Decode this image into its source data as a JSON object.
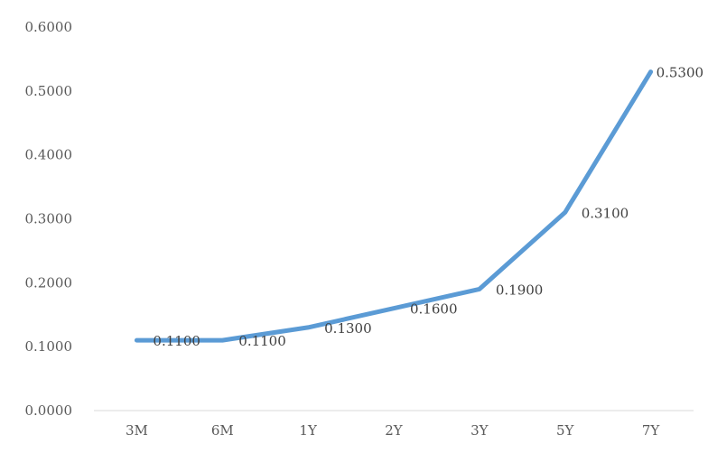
{
  "chart_data": {
    "type": "line",
    "title": "",
    "xlabel": "",
    "ylabel": "",
    "categories": [
      "3M",
      "6M",
      "1Y",
      "2Y",
      "3Y",
      "5Y",
      "7Y"
    ],
    "series": [
      {
        "values": [
          0.11,
          0.11,
          0.13,
          0.16,
          0.19,
          0.31,
          0.53
        ],
        "labels": [
          "0.1100",
          "0.1100",
          "0.1300",
          "0.1600",
          "0.1900",
          "0.3100",
          "0.5300"
        ]
      }
    ],
    "ylim": [
      0,
      0.6
    ],
    "yticks": [
      0,
      0.1,
      0.2,
      0.3,
      0.4,
      0.5,
      0.6
    ],
    "ytick_labels": [
      "0.0000",
      "0.1000",
      "0.2000",
      "0.3000",
      "0.4000",
      "0.5000",
      "0.6000"
    ],
    "grid": false,
    "legend": "none",
    "colors": {
      "line": "#5b9bd5",
      "axis": "#d9d9d9",
      "text": "#595959"
    }
  }
}
